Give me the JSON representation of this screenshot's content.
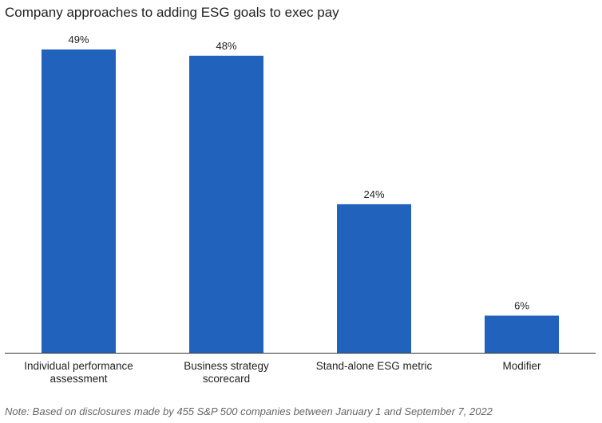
{
  "chart_data": {
    "type": "bar",
    "title": "Company approaches to adding ESG goals to exec pay",
    "categories": [
      [
        "Individual performance",
        "assessment"
      ],
      [
        "Business strategy",
        "scorecard"
      ],
      [
        "Stand-alone ESG metric"
      ],
      [
        "Modifier"
      ]
    ],
    "values": [
      49,
      48,
      24,
      6
    ],
    "data_labels": [
      "49%",
      "48%",
      "24%",
      "6%"
    ],
    "unit": "%",
    "xlabel": "",
    "ylabel": "",
    "ylim": [
      0,
      49
    ],
    "grid": false,
    "legend": "none",
    "bar_color": "#2162bd",
    "axis_color": "#333333",
    "note": "Note: Based on disclosures made by 455 S&P 500 companies between January 1 and September 7, 2022"
  }
}
